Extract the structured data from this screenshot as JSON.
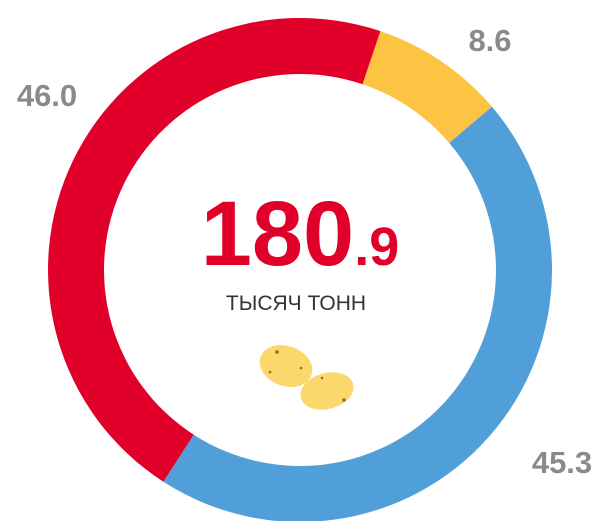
{
  "chart_data": {
    "type": "donut",
    "center_value": 180.9,
    "center_label": "ТЫСЯЧ ТОНН",
    "categories": [
      null,
      null,
      null
    ],
    "values": [
      8.6,
      45.3,
      46.0
    ],
    "value_labels": [
      "8.6",
      "45.3",
      "46.0"
    ],
    "colors": [
      "#fdc443",
      "#509fd9",
      "#e0002a"
    ]
  }
}
